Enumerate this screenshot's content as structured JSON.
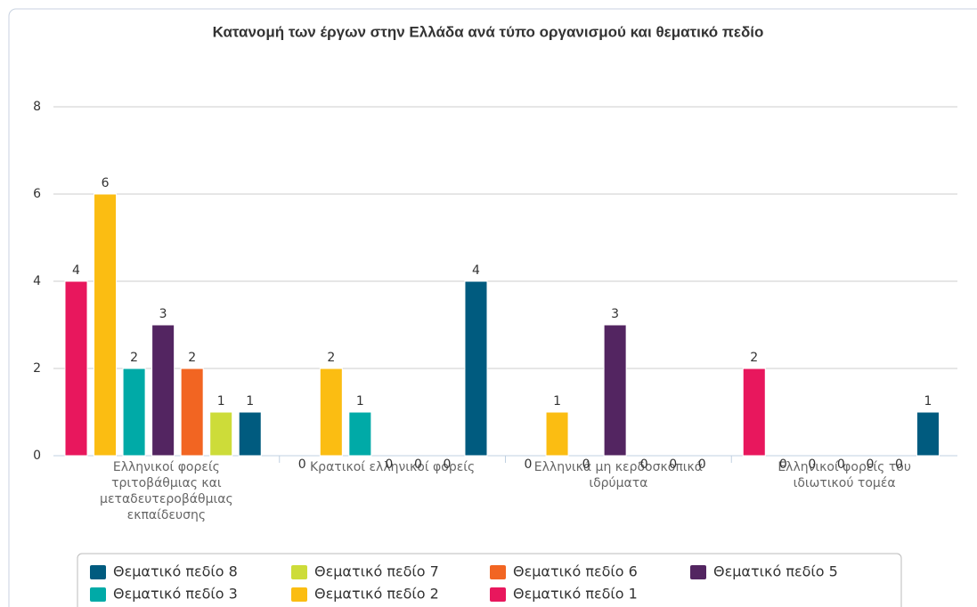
{
  "chart_data": {
    "type": "bar",
    "title": "Κατανομή των έργων στην Ελλάδα ανά τύπο οργανισμού και θεματικό πεδίο",
    "categories": [
      "Ελληνικοί φορείς τριτοβάθμιας και μεταδευτεροβάθμιας εκπαίδευσης",
      "Κρατικοί ελληνικοί φορείς",
      "Ελληνικά μη κερδοσκοπικά ιδρύματα",
      "Ελληνικοί φορείς του ιδιωτικού τομέα"
    ],
    "series": [
      {
        "name": "Θεματικό πεδίο 1",
        "color": "#e8175d",
        "values": [
          4,
          0,
          0,
          2
        ]
      },
      {
        "name": "Θεματικό πεδίο 2",
        "color": "#fbbd12",
        "values": [
          6,
          2,
          1,
          0
        ]
      },
      {
        "name": "Θεματικό πεδίο 3",
        "color": "#00aaa7",
        "values": [
          2,
          1,
          0,
          0
        ]
      },
      {
        "name": "Θεματικό πεδίο 5",
        "color": "#532561",
        "values": [
          3,
          0,
          3,
          0
        ]
      },
      {
        "name": "Θεματικό πεδίο 6",
        "color": "#f26522",
        "values": [
          2,
          0,
          0,
          0
        ]
      },
      {
        "name": "Θεματικό πεδίο 7",
        "color": "#cddc39",
        "values": [
          1,
          0,
          0,
          0
        ]
      },
      {
        "name": "Θεματικό πεδίο 8",
        "color": "#005b7f",
        "values": [
          1,
          4,
          0,
          1
        ]
      }
    ],
    "ylim": [
      0,
      8
    ],
    "yticks": [
      0,
      2,
      4,
      6,
      8
    ],
    "grid": true
  }
}
